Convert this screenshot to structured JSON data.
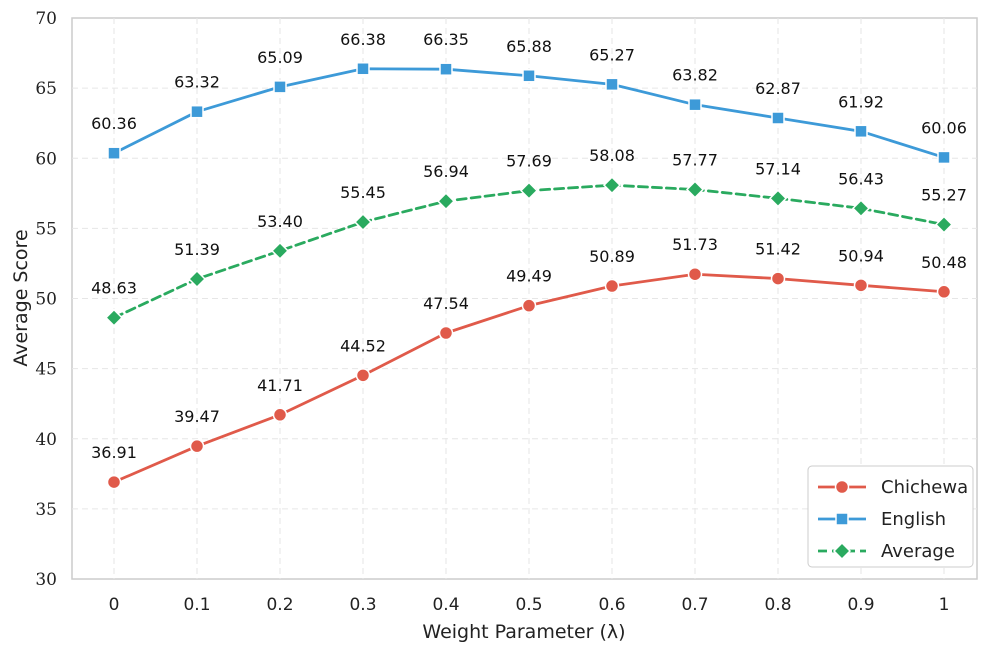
{
  "chart_data": {
    "type": "line",
    "title": "",
    "xlabel": "Weight Parameter (λ)",
    "ylabel": "Average Score",
    "categories": [
      "0",
      "0.1",
      "0.2",
      "0.3",
      "0.4",
      "0.5",
      "0.6",
      "0.7",
      "0.8",
      "0.9",
      "1"
    ],
    "x": [
      0,
      0.1,
      0.2,
      0.3,
      0.4,
      0.5,
      0.6,
      0.7,
      0.8,
      0.9,
      1
    ],
    "ylim": [
      30,
      70
    ],
    "yticks": [
      30,
      35,
      40,
      45,
      50,
      55,
      60,
      65,
      70
    ],
    "ytick_labels": [
      "30",
      "35",
      "40",
      "45",
      "50",
      "55",
      "60",
      "65",
      "70"
    ],
    "grid": true,
    "legend_position": "bottom-right",
    "series": [
      {
        "name": "Chichewa",
        "color": "#e05a4a",
        "marker": "circle",
        "line_style": "solid",
        "label_position": "above",
        "values": [
          36.91,
          39.47,
          41.71,
          44.52,
          47.54,
          49.49,
          50.89,
          51.73,
          51.42,
          50.94,
          50.48
        ],
        "labels": [
          "36.91",
          "39.47",
          "41.71",
          "44.52",
          "47.54",
          "49.49",
          "50.89",
          "51.73",
          "51.42",
          "50.94",
          "50.48"
        ]
      },
      {
        "name": "English",
        "color": "#3d9ad8",
        "marker": "square",
        "line_style": "solid",
        "label_position": "above",
        "values": [
          60.36,
          63.32,
          65.09,
          66.38,
          66.35,
          65.88,
          65.27,
          63.82,
          62.87,
          61.92,
          60.06
        ],
        "labels": [
          "60.36",
          "63.32",
          "65.09",
          "66.38",
          "66.35",
          "65.88",
          "65.27",
          "63.82",
          "62.87",
          "61.92",
          "60.06"
        ]
      },
      {
        "name": "Average",
        "color": "#2aaa5f",
        "marker": "diamond",
        "line_style": "dashed",
        "label_position": "above",
        "values": [
          48.63,
          51.39,
          53.4,
          55.45,
          56.94,
          57.69,
          58.08,
          57.77,
          57.14,
          56.43,
          55.27
        ],
        "labels": [
          "48.63",
          "51.39",
          "53.40",
          "55.45",
          "56.94",
          "57.69",
          "58.08",
          "57.77",
          "57.14",
          "56.43",
          "55.27"
        ]
      }
    ]
  }
}
